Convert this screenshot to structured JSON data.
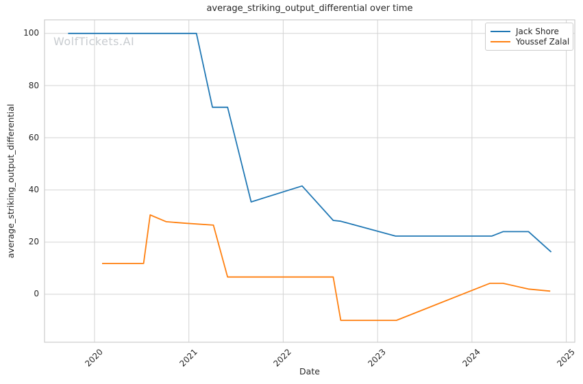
{
  "watermark": "WolfTickets.AI",
  "chart_data": {
    "type": "line",
    "title": "average_striking_output_differential over time",
    "xlabel": "Date",
    "ylabel": "average_striking_output_differential",
    "xlim": [
      2019.47,
      2025.09
    ],
    "ylim": [
      -18.4,
      105.2
    ],
    "x_ticks": [
      2020,
      2021,
      2022,
      2023,
      2024,
      2025
    ],
    "y_ticks": [
      0,
      20,
      40,
      60,
      80,
      100
    ],
    "grid": true,
    "legend_position": "upper right",
    "colors": {
      "jack_shore": "#1f77b4",
      "youssef_zalal": "#ff7f0e"
    },
    "series": [
      {
        "name": "Jack Shore",
        "color": "#1f77b4",
        "x": [
          2019.72,
          2021.08,
          2021.25,
          2021.41,
          2021.66,
          2022.2,
          2022.53,
          2022.61,
          2023.19,
          2024.21,
          2024.33,
          2024.6,
          2024.84
        ],
        "y": [
          100,
          100,
          71.7,
          71.7,
          35.4,
          41.5,
          28.3,
          28.0,
          22.3,
          22.3,
          24.0,
          24.0,
          16.2
        ]
      },
      {
        "name": "Youssef Zalal",
        "color": "#ff7f0e",
        "x": [
          2020.08,
          2020.52,
          2020.59,
          2020.76,
          2020.97,
          2021.26,
          2021.41,
          2022.53,
          2022.61,
          2023.2,
          2024.19,
          2024.33,
          2024.6,
          2024.83
        ],
        "y": [
          11.8,
          11.8,
          30.4,
          27.8,
          27.2,
          26.5,
          6.6,
          6.6,
          -10.0,
          -10.0,
          4.2,
          4.2,
          2.0,
          1.2
        ]
      }
    ]
  }
}
